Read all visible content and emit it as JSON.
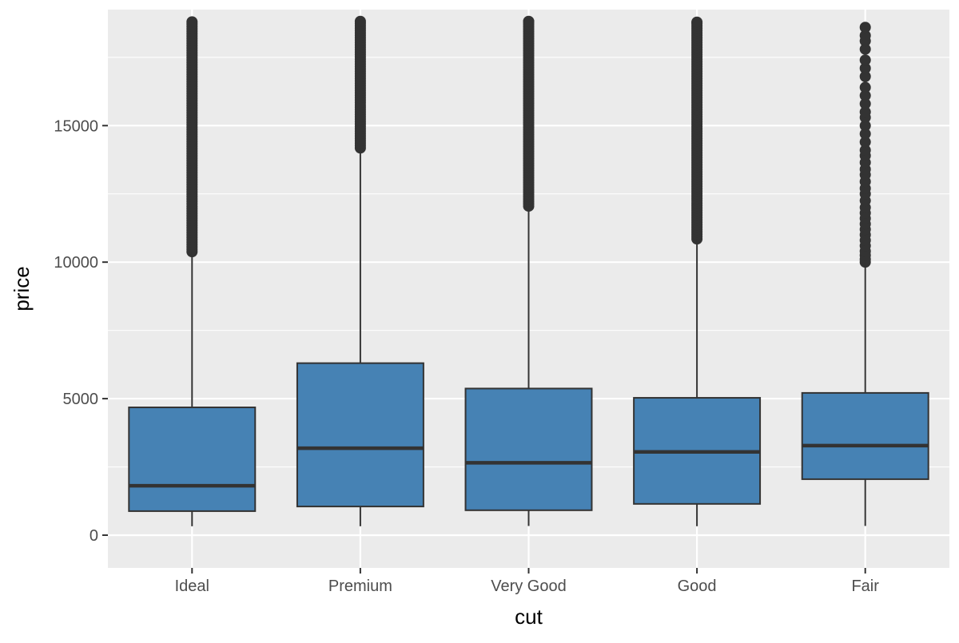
{
  "chart_data": {
    "type": "boxplot",
    "title": "",
    "xlabel": "cut",
    "ylabel": "price",
    "categories": [
      "Ideal",
      "Premium",
      "Very Good",
      "Good",
      "Fair"
    ],
    "ylim": [
      -1200,
      19250
    ],
    "yticks": [
      0,
      5000,
      10000,
      15000
    ],
    "grid": true,
    "legend": "none",
    "colors": {
      "panel": "#ebebeb",
      "grid": "#ffffff",
      "box_fill": "#4682b4",
      "box_stroke": "#333333",
      "outlier": "#333333",
      "tick_text": "#4d4d4d"
    },
    "boxes": [
      {
        "category": "Ideal",
        "whisker_low": 326,
        "q1": 880,
        "median": 1810,
        "q3": 4680,
        "whisker_high": 10380,
        "outlier_range": [
          10380,
          18800
        ]
      },
      {
        "category": "Premium",
        "whisker_low": 326,
        "q1": 1050,
        "median": 3185,
        "q3": 6300,
        "whisker_high": 14180,
        "outlier_range": [
          14180,
          18820
        ]
      },
      {
        "category": "Very Good",
        "whisker_low": 336,
        "q1": 912,
        "median": 2650,
        "q3": 5370,
        "whisker_high": 12050,
        "outlier_range": [
          12050,
          18820
        ]
      },
      {
        "category": "Good",
        "whisker_low": 327,
        "q1": 1145,
        "median": 3050,
        "q3": 5030,
        "whisker_high": 10850,
        "outlier_range": [
          10850,
          18790
        ]
      },
      {
        "category": "Fair",
        "whisker_low": 337,
        "q1": 2050,
        "median": 3280,
        "q3": 5210,
        "whisker_high": 9990,
        "outliers": [
          10000,
          10100,
          10250,
          10400,
          10600,
          10800,
          11000,
          11200,
          11400,
          11600,
          11800,
          12000,
          12250,
          12500,
          12700,
          12950,
          13200,
          13400,
          13650,
          13900,
          14100,
          14400,
          14700,
          15000,
          15300,
          15500,
          15800,
          16100,
          16400,
          16800,
          17100,
          17400,
          17800,
          18100,
          18300,
          18600
        ]
      }
    ]
  }
}
